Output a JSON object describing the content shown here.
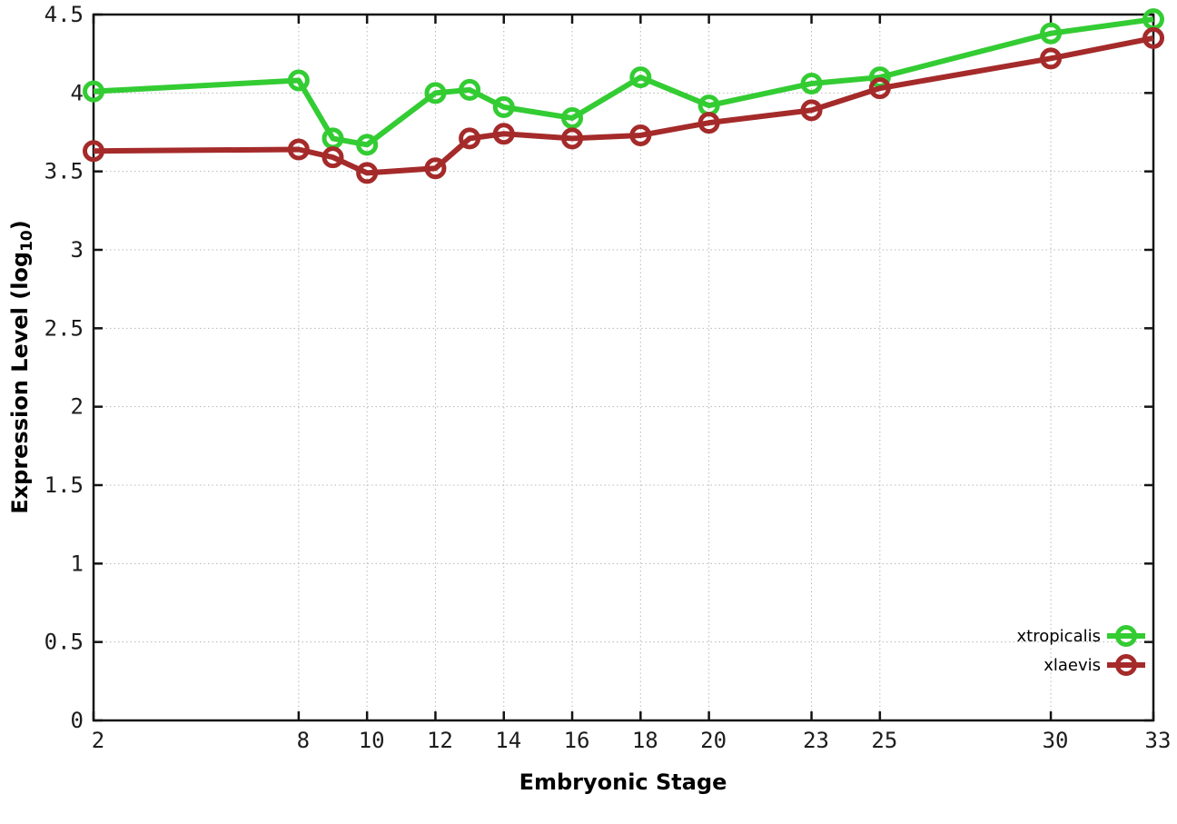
{
  "figure": {
    "background": "#ffffff",
    "xlabel": "Embryonic Stage",
    "ylabel_prefix": "Expression Level (log",
    "ylabel_sub": "10",
    "ylabel_suffix": ")"
  },
  "chart_data": {
    "type": "line",
    "title": "",
    "xlabel": "Embryonic Stage",
    "ylabel": "Expression Level (log10)",
    "x": [
      2,
      8,
      9,
      10,
      12,
      13,
      14,
      16,
      18,
      20,
      23,
      25,
      30,
      33
    ],
    "series": [
      {
        "name": "xtropicalis",
        "color": "#33cc33",
        "values": [
          4.01,
          4.08,
          3.71,
          3.67,
          4.0,
          4.02,
          3.91,
          3.84,
          4.1,
          3.92,
          4.06,
          4.1,
          4.38,
          4.47
        ]
      },
      {
        "name": "xlaevis",
        "color": "#a52a2a",
        "values": [
          3.63,
          3.64,
          3.59,
          3.49,
          3.52,
          3.71,
          3.74,
          3.71,
          3.73,
          3.81,
          3.89,
          4.03,
          4.22,
          4.35
        ]
      }
    ],
    "xticks": [
      2,
      8,
      10,
      12,
      14,
      16,
      18,
      20,
      23,
      25,
      30,
      33
    ],
    "yticks": [
      0,
      0.5,
      1,
      1.5,
      2,
      2.5,
      3,
      3.5,
      4,
      4.5
    ],
    "xlim": [
      2,
      33
    ],
    "ylim": [
      0,
      4.5
    ],
    "grid": true,
    "grid_style": "dotted",
    "marker": "open-circle",
    "legend_position": "bottom-right"
  }
}
